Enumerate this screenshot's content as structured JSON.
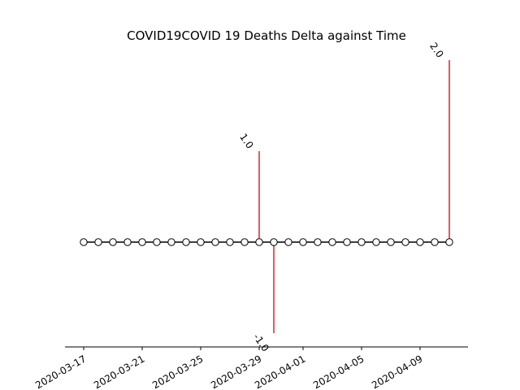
{
  "chart_data": {
    "type": "line",
    "title": "COVID19COVID 19 Deaths Delta against Time",
    "xlabel": "",
    "ylabel": "",
    "grid": false,
    "x_tick_labels": [
      "2020-03-17",
      "2020-03-21",
      "2020-03-25",
      "2020-03-29",
      "2020-04-01",
      "2020-04-05",
      "2020-04-09"
    ],
    "x": [
      "2020-03-17",
      "2020-03-18",
      "2020-03-19",
      "2020-03-20",
      "2020-03-21",
      "2020-03-22",
      "2020-03-23",
      "2020-03-24",
      "2020-03-25",
      "2020-03-26",
      "2020-03-27",
      "2020-03-28",
      "2020-03-29",
      "2020-03-30",
      "2020-03-31",
      "2020-04-01",
      "2020-04-02",
      "2020-04-03",
      "2020-04-04",
      "2020-04-05",
      "2020-04-06",
      "2020-04-07",
      "2020-04-08",
      "2020-04-09",
      "2020-04-10",
      "2020-04-11"
    ],
    "values": [
      0,
      0,
      0,
      0,
      0,
      0,
      0,
      0,
      0,
      0,
      0,
      0,
      1.0,
      -1.0,
      0,
      0,
      0,
      0,
      0,
      0,
      0,
      0,
      0,
      0,
      0,
      2.0
    ],
    "data_labels": [
      {
        "x": "2020-03-29",
        "value": 1.0,
        "text": "1.0"
      },
      {
        "x": "2020-03-30",
        "value": -1.0,
        "text": "-1.0"
      },
      {
        "x": "2020-04-11",
        "value": 2.0,
        "text": "2.0"
      }
    ],
    "ylim": [
      -1.15,
      2.15
    ],
    "colors": {
      "stem": "#d62728",
      "line": "#000000",
      "marker_fill": "#ffffff"
    }
  }
}
